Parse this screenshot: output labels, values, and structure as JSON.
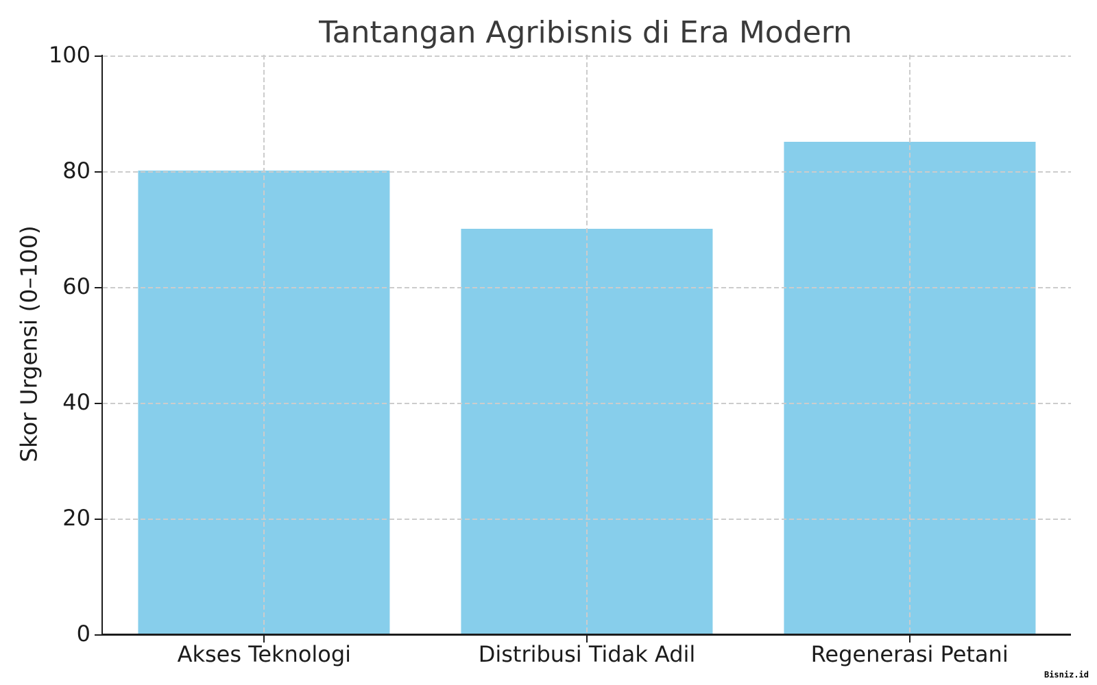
{
  "figure": {
    "watermark": "Bisniz.id"
  },
  "chart_data": {
    "type": "bar",
    "title": "Tantangan Agribisnis di Era Modern",
    "categories": [
      "Akses Teknologi",
      "Distribusi Tidak Adil",
      "Regenerasi Petani"
    ],
    "values": [
      80,
      70,
      85
    ],
    "xlabel": "",
    "ylabel": "Skor Urgensi (0–100)",
    "ylim": [
      0,
      100
    ],
    "yticks": [
      0,
      20,
      40,
      60,
      80,
      100
    ],
    "grid": true,
    "grid_style": "dashed",
    "grid_color": "#cccccc",
    "legend": false,
    "bar_color": "#87CEEB",
    "axis_color": "#1c1c1c",
    "title_color": "#3a3a3a",
    "background": "#ffffff"
  }
}
